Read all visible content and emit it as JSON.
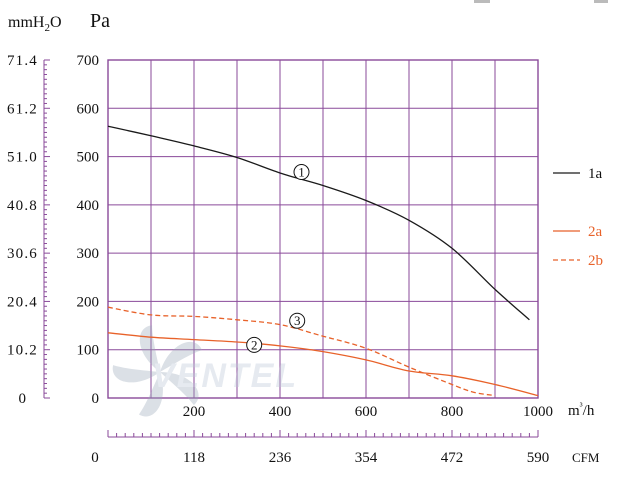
{
  "chart_data": {
    "type": "line",
    "units": {
      "pressure_alt": "mmH2O",
      "pressure": "Pa",
      "flow": "m³/h",
      "flow_alt": "CFM"
    },
    "watermark": "VENTEL",
    "colors": {
      "grid": "#8a4a9a",
      "series_1a": "#1a1a1a",
      "series_2": "#e8622a",
      "cfm_label": "#8a4a9a"
    },
    "x_axis": {
      "range": [
        0,
        1000
      ],
      "tick_labels": [
        "200",
        "400",
        "600",
        "800",
        "1000"
      ]
    },
    "y_axis": {
      "range": [
        0,
        700
      ],
      "tick_labels": [
        "0",
        "100",
        "200",
        "300",
        "400",
        "500",
        "600",
        "700"
      ]
    },
    "y_axis_alt": {
      "tick_labels": [
        "0",
        "10.2",
        "20.4",
        "30.6",
        "40.8",
        "51.0",
        "61.2",
        "71.4"
      ]
    },
    "x_axis_alt": {
      "tick_labels": [
        "0",
        "118",
        "236",
        "354",
        "472",
        "590"
      ]
    },
    "legend": [
      {
        "key": "1a",
        "label": "1a",
        "style": "solid"
      },
      {
        "key": "2a",
        "label": "2a",
        "style": "solid"
      },
      {
        "key": "2b",
        "label": "2b",
        "style": "dashed"
      }
    ],
    "series": [
      {
        "name": "1a",
        "marker": "1",
        "style": "solid",
        "x": [
          0,
          100,
          200,
          300,
          400,
          500,
          600,
          700,
          800,
          900,
          980
        ],
        "y": [
          563,
          543,
          522,
          498,
          466,
          440,
          409,
          368,
          310,
          225,
          162
        ]
      },
      {
        "name": "2a",
        "marker": "2",
        "style": "solid",
        "x": [
          0,
          100,
          200,
          300,
          400,
          500,
          600,
          700,
          800,
          900,
          1000
        ],
        "y": [
          135,
          126,
          121,
          116,
          108,
          96,
          79,
          56,
          46,
          28,
          5
        ]
      },
      {
        "name": "2b",
        "marker": "3",
        "style": "dashed",
        "x": [
          0,
          100,
          200,
          300,
          400,
          500,
          600,
          700,
          800,
          850,
          900
        ],
        "y": [
          188,
          172,
          169,
          162,
          152,
          128,
          103,
          64,
          28,
          12,
          5
        ]
      }
    ]
  }
}
